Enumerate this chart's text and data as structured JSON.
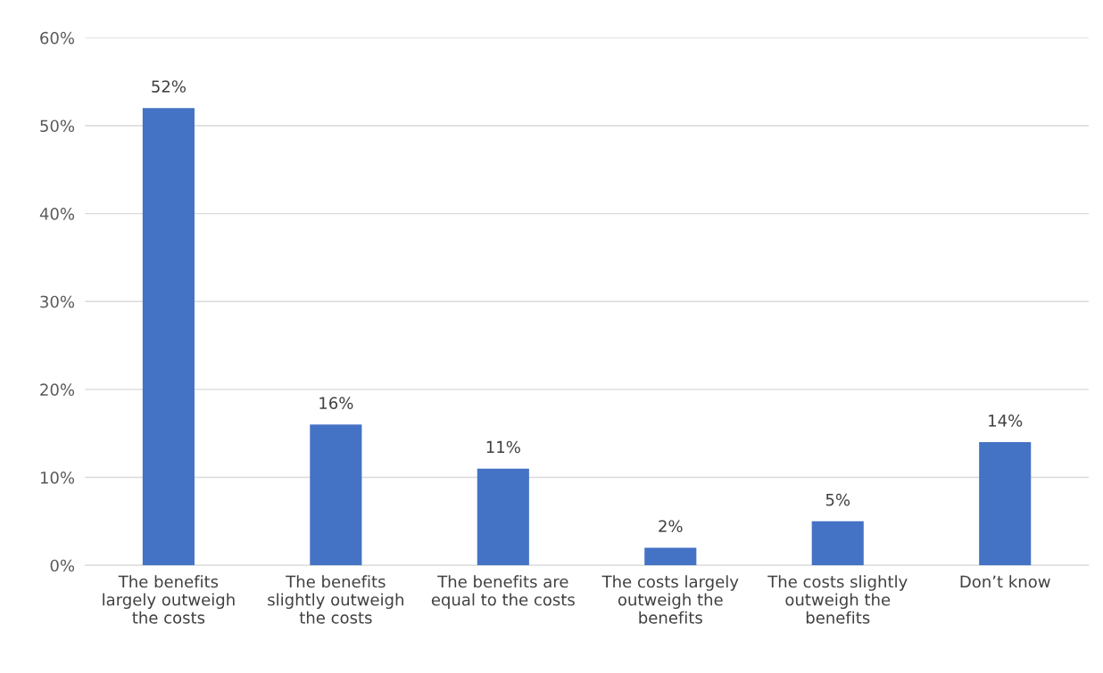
{
  "chart_data": {
    "type": "bar",
    "categories": [
      "The benefits\nlargely outweigh\nthe costs",
      "The benefits\nslightly outweigh\nthe costs",
      "The benefits are\nequal to the costs",
      "The costs largely\noutweigh the\nbenefits",
      "The costs slightly\noutweigh the\nbenefits",
      "Don’t know"
    ],
    "values": [
      52,
      16,
      11,
      2,
      5,
      14
    ],
    "value_labels": [
      "52%",
      "16%",
      "11%",
      "2%",
      "5%",
      "14%"
    ],
    "color": "#4472c4",
    "ylim": [
      0,
      60
    ],
    "yticks": [
      {
        "value": 0,
        "label": "0%"
      },
      {
        "value": 10,
        "label": "10%"
      },
      {
        "value": 20,
        "label": "20%"
      },
      {
        "value": 30,
        "label": "30%"
      },
      {
        "value": 40,
        "label": "40%"
      },
      {
        "value": 50,
        "label": "50%"
      },
      {
        "value": 60,
        "label": "60%"
      }
    ],
    "grid": "y"
  }
}
